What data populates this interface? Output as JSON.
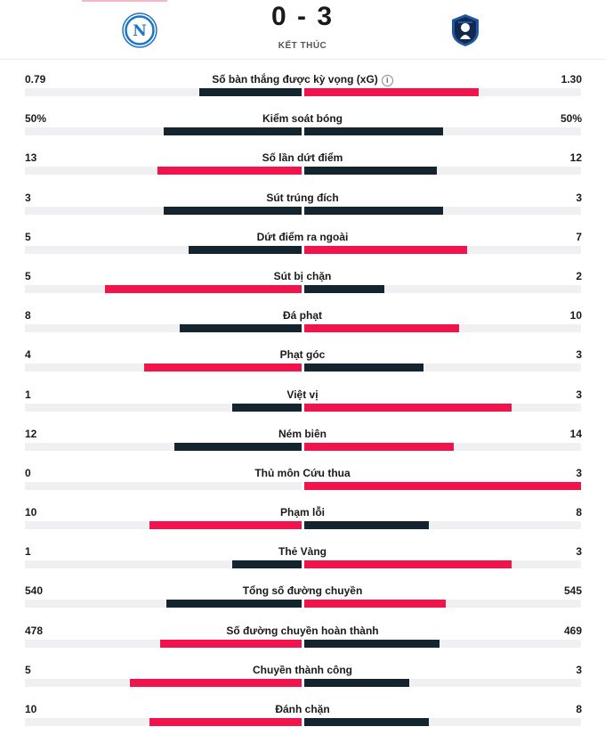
{
  "match": {
    "score": "0 - 3",
    "status": "KẾT THÚC",
    "home_logo_letter": "N",
    "colors": {
      "dark": "#14252f",
      "red": "#f0134c",
      "track": "#f0f0f2",
      "napoli_blue": "#1e74c8",
      "atalanta_blue": "#1f56a6"
    }
  },
  "stats": [
    {
      "label": "Số bàn thắng được kỳ vọng (xG)",
      "home": "0.79",
      "away": "1.30",
      "info": true,
      "home_frac": 0.37,
      "away_frac": 0.63,
      "leader": "away"
    },
    {
      "label": "Kiểm soát bóng",
      "home": "50%",
      "away": "50%",
      "home_frac": 0.5,
      "away_frac": 0.5,
      "leader": "none"
    },
    {
      "label": "Số lần dứt điểm",
      "home": "13",
      "away": "12",
      "home_frac": 0.52,
      "away_frac": 0.48,
      "leader": "home"
    },
    {
      "label": "Sút trúng đích",
      "home": "3",
      "away": "3",
      "home_frac": 0.5,
      "away_frac": 0.5,
      "leader": "none"
    },
    {
      "label": "Dứt điểm ra ngoài",
      "home": "5",
      "away": "7",
      "home_frac": 0.41,
      "away_frac": 0.59,
      "leader": "away"
    },
    {
      "label": "Sút bị chặn",
      "home": "5",
      "away": "2",
      "home_frac": 0.71,
      "away_frac": 0.29,
      "leader": "home"
    },
    {
      "label": "Đá phạt",
      "home": "8",
      "away": "10",
      "home_frac": 0.44,
      "away_frac": 0.56,
      "leader": "away"
    },
    {
      "label": "Phạt góc",
      "home": "4",
      "away": "3",
      "home_frac": 0.57,
      "away_frac": 0.43,
      "leader": "home"
    },
    {
      "label": "Việt vị",
      "home": "1",
      "away": "3",
      "home_frac": 0.25,
      "away_frac": 0.75,
      "leader": "away"
    },
    {
      "label": "Ném biên",
      "home": "12",
      "away": "14",
      "home_frac": 0.46,
      "away_frac": 0.54,
      "leader": "away"
    },
    {
      "label": "Thủ môn Cứu thua",
      "home": "0",
      "away": "3",
      "home_frac": 0.0,
      "away_frac": 1.0,
      "leader": "away"
    },
    {
      "label": "Phạm lỗi",
      "home": "10",
      "away": "8",
      "home_frac": 0.55,
      "away_frac": 0.45,
      "leader": "home"
    },
    {
      "label": "Thẻ Vàng",
      "home": "1",
      "away": "3",
      "home_frac": 0.25,
      "away_frac": 0.75,
      "leader": "away"
    },
    {
      "label": "Tổng số đường chuyền",
      "home": "540",
      "away": "545",
      "home_frac": 0.49,
      "away_frac": 0.51,
      "leader": "away"
    },
    {
      "label": "Số đường chuyền hoàn thành",
      "home": "478",
      "away": "469",
      "home_frac": 0.51,
      "away_frac": 0.49,
      "leader": "home"
    },
    {
      "label": "Chuyền thành công",
      "home": "5",
      "away": "3",
      "home_frac": 0.62,
      "away_frac": 0.38,
      "leader": "home"
    },
    {
      "label": "Đánh chặn",
      "home": "10",
      "away": "8",
      "home_frac": 0.55,
      "away_frac": 0.45,
      "leader": "home"
    }
  ]
}
